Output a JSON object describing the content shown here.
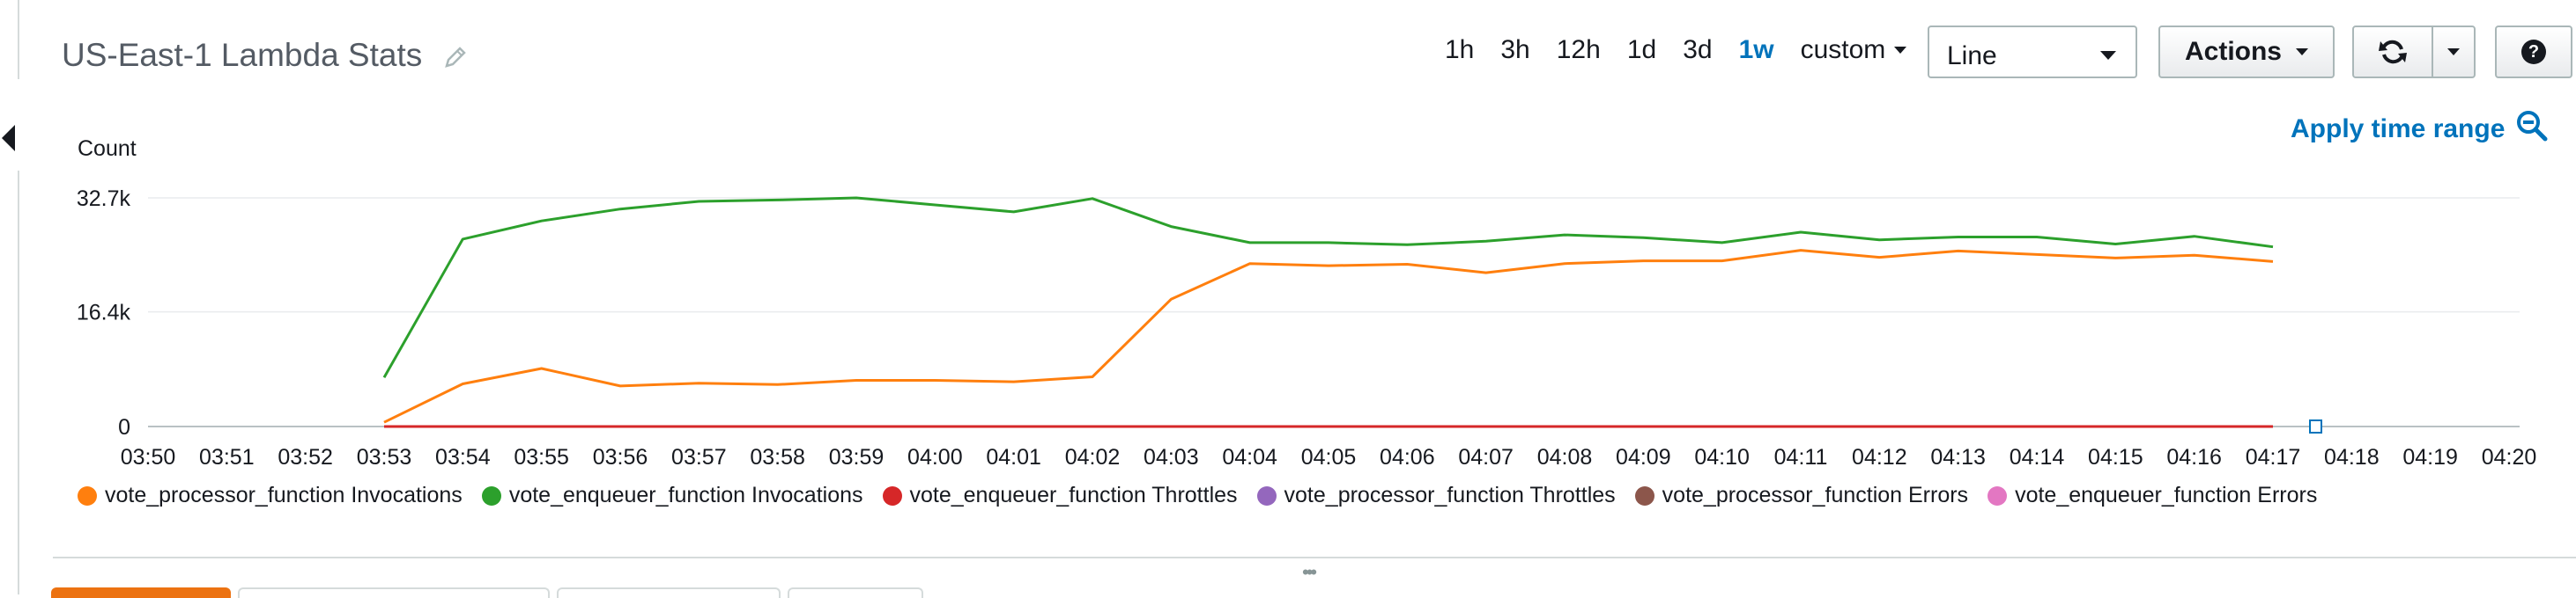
{
  "dashboard": {
    "title": "US-East-1 Lambda Stats"
  },
  "toolbar": {
    "ranges": [
      "1h",
      "3h",
      "12h",
      "1d",
      "3d",
      "1w"
    ],
    "active_range": "1w",
    "custom_label": "custom",
    "chart_type": "Line",
    "actions_label": "Actions",
    "apply_label": "Apply time range",
    "help_label": "?"
  },
  "chart_data": {
    "type": "line",
    "ylabel": "Count",
    "y_ticks": [
      "32.7k",
      "16.4k",
      "0"
    ],
    "y_tick_values": [
      32700,
      16400,
      0
    ],
    "ylim": [
      0,
      32700
    ],
    "x_ticks": [
      "03:50",
      "03:51",
      "03:52",
      "03:53",
      "03:54",
      "03:55",
      "03:56",
      "03:57",
      "03:58",
      "03:59",
      "04:00",
      "04:01",
      "04:02",
      "04:03",
      "04:04",
      "04:05",
      "04:06",
      "04:07",
      "04:08",
      "04:09",
      "04:10",
      "04:11",
      "04:12",
      "04:13",
      "04:14",
      "04:15",
      "04:16",
      "04:17",
      "04:18",
      "04:19",
      "04:20"
    ],
    "x": [
      "03:53",
      "03:54",
      "03:55",
      "03:56",
      "03:57",
      "03:58",
      "03:59",
      "04:00",
      "04:01",
      "04:02",
      "04:03",
      "04:04",
      "04:05",
      "04:06",
      "04:07",
      "04:08",
      "04:09",
      "04:10",
      "04:11",
      "04:12",
      "04:13",
      "04:14",
      "04:15",
      "04:16",
      "04:17"
    ],
    "grid": true,
    "legend_position": "bottom",
    "series": [
      {
        "name": "vote_processor_function Invocations",
        "color": "#ff7f0e",
        "values": [
          600,
          6100,
          8300,
          5800,
          6200,
          6000,
          6600,
          6600,
          6400,
          7100,
          18200,
          23300,
          23000,
          23200,
          22000,
          23300,
          23700,
          23700,
          25200,
          24200,
          25100,
          24600,
          24100,
          24500,
          23600
        ]
      },
      {
        "name": "vote_enqueuer_function Invocations",
        "color": "#2ca02c",
        "values": [
          7000,
          26800,
          29400,
          31100,
          32200,
          32400,
          32700,
          31700,
          30700,
          32600,
          28600,
          26300,
          26300,
          26000,
          26500,
          27400,
          27000,
          26300,
          27800,
          26700,
          27100,
          27100,
          26100,
          27200,
          25700
        ]
      },
      {
        "name": "vote_enqueuer_function Throttles",
        "color": "#d62728",
        "values": [
          0,
          0,
          0,
          0,
          0,
          0,
          0,
          0,
          0,
          0,
          0,
          0,
          0,
          0,
          0,
          0,
          0,
          0,
          0,
          0,
          0,
          0,
          0,
          0,
          0
        ]
      },
      {
        "name": "vote_processor_function Throttles",
        "color": "#9467bd",
        "values": [
          0,
          0,
          0,
          0,
          0,
          0,
          0,
          0,
          0,
          0,
          0,
          0,
          0,
          0,
          0,
          0,
          0,
          0,
          0,
          0,
          0,
          0,
          0,
          0,
          0
        ]
      },
      {
        "name": "vote_processor_function Errors",
        "color": "#8c564b",
        "values": [
          0,
          0,
          0,
          0,
          0,
          0,
          0,
          0,
          0,
          0,
          0,
          0,
          0,
          0,
          0,
          0,
          0,
          0,
          0,
          0,
          0,
          0,
          0,
          0,
          0
        ]
      },
      {
        "name": "vote_enqueuer_function Errors",
        "color": "#e377c2",
        "values": [
          0,
          0,
          0,
          0,
          0,
          0,
          0,
          0,
          0,
          0,
          0,
          0,
          0,
          0,
          0,
          0,
          0,
          0,
          0,
          0,
          0,
          0,
          0,
          0,
          0
        ]
      }
    ]
  }
}
